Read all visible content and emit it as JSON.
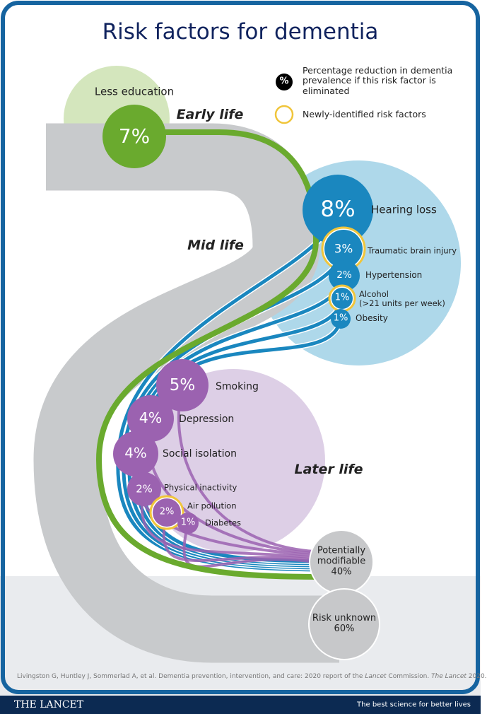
{
  "title": "Risk factors for dementia",
  "legend": {
    "symbol": "%",
    "percentage": "Percentage reduction in dementia prevalence if this risk factor is eliminated",
    "new": "Newly-identified risk factors"
  },
  "stages": {
    "early": "Early life",
    "mid": "Mid life",
    "later": "Later life"
  },
  "early_factors": [
    {
      "pct": "7%",
      "label": "Less education",
      "new": false
    }
  ],
  "mid_factors": [
    {
      "pct": "8%",
      "label": "Hearing loss",
      "new": false
    },
    {
      "pct": "3%",
      "label": "Traumatic brain injury",
      "new": true
    },
    {
      "pct": "2%",
      "label": "Hypertension",
      "new": false
    },
    {
      "pct": "1%",
      "label": "Alcohol\n(>21 units per week)",
      "new": true
    },
    {
      "pct": "1%",
      "label": "Obesity",
      "new": false
    }
  ],
  "later_factors": [
    {
      "pct": "5%",
      "label": "Smoking",
      "new": false
    },
    {
      "pct": "4%",
      "label": "Depression",
      "new": false
    },
    {
      "pct": "4%",
      "label": "Social isolation",
      "new": false
    },
    {
      "pct": "2%",
      "label": "Physical inactivity",
      "new": false
    },
    {
      "pct": "2%",
      "label": "Air pollution",
      "new": true
    },
    {
      "pct": "1%",
      "label": "Diabetes",
      "new": false
    }
  ],
  "summary": [
    {
      "label": "Potentially\nmodifiable\n40%"
    },
    {
      "label": "Risk unknown\n60%"
    }
  ],
  "citation": [
    "Livingston G, Huntley J, Sommerlad A, et al. Dementia prevention, intervention, and care: 2020 report of the ",
    "Lancet",
    " Commission. ",
    "The Lancet",
    " 2020."
  ],
  "footer": {
    "brand": "THE LANCET",
    "tagline": "The best science for better lives"
  }
}
